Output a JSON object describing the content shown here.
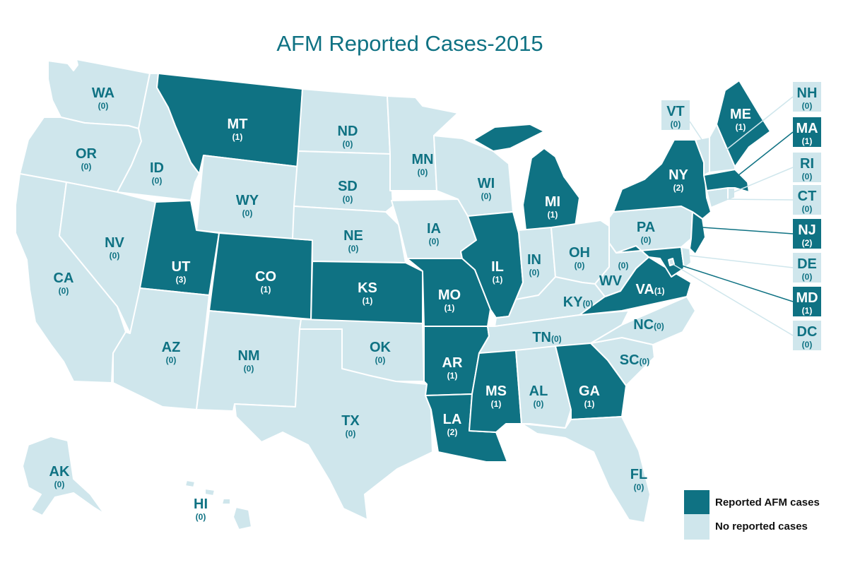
{
  "title": "AFM Reported Cases-2015",
  "colors": {
    "reported": "#0f7283",
    "none": "#cfe6ec",
    "border": "#ffffff",
    "label_on_light": "#0f7283",
    "label_on_dark": "#ffffff"
  },
  "legend": {
    "reported_label": "Reported AFM cases",
    "none_label": "No reported cases"
  },
  "states": {
    "WA": {
      "abbr": "WA",
      "count": "(0)",
      "reported": false
    },
    "OR": {
      "abbr": "OR",
      "count": "(0)",
      "reported": false
    },
    "CA": {
      "abbr": "CA",
      "count": "(0)",
      "reported": false
    },
    "ID": {
      "abbr": "ID",
      "count": "(0)",
      "reported": false
    },
    "NV": {
      "abbr": "NV",
      "count": "(0)",
      "reported": false
    },
    "MT": {
      "abbr": "MT",
      "count": "(1)",
      "reported": true
    },
    "WY": {
      "abbr": "WY",
      "count": "(0)",
      "reported": false
    },
    "UT": {
      "abbr": "UT",
      "count": "(3)",
      "reported": true
    },
    "CO": {
      "abbr": "CO",
      "count": "(1)",
      "reported": true
    },
    "AZ": {
      "abbr": "AZ",
      "count": "(0)",
      "reported": false
    },
    "NM": {
      "abbr": "NM",
      "count": "(0)",
      "reported": false
    },
    "ND": {
      "abbr": "ND",
      "count": "(0)",
      "reported": false
    },
    "SD": {
      "abbr": "SD",
      "count": "(0)",
      "reported": false
    },
    "NE": {
      "abbr": "NE",
      "count": "(0)",
      "reported": false
    },
    "KS": {
      "abbr": "KS",
      "count": "(1)",
      "reported": true
    },
    "OK": {
      "abbr": "OK",
      "count": "(0)",
      "reported": false
    },
    "TX": {
      "abbr": "TX",
      "count": "(0)",
      "reported": false
    },
    "MN": {
      "abbr": "MN",
      "count": "(0)",
      "reported": false
    },
    "IA": {
      "abbr": "IA",
      "count": "(0)",
      "reported": false
    },
    "MO": {
      "abbr": "MO",
      "count": "(1)",
      "reported": true
    },
    "AR": {
      "abbr": "AR",
      "count": "(1)",
      "reported": true
    },
    "LA": {
      "abbr": "LA",
      "count": "(2)",
      "reported": true
    },
    "WI": {
      "abbr": "WI",
      "count": "(0)",
      "reported": false
    },
    "IL": {
      "abbr": "IL",
      "count": "(1)",
      "reported": true
    },
    "MI": {
      "abbr": "MI",
      "count": "(1)",
      "reported": true
    },
    "IN": {
      "abbr": "IN",
      "count": "(0)",
      "reported": false
    },
    "OH": {
      "abbr": "OH",
      "count": "(0)",
      "reported": false
    },
    "KY": {
      "abbr": "KY",
      "count": "(0)",
      "reported": false
    },
    "TN": {
      "abbr": "TN",
      "count": "(0)",
      "reported": false
    },
    "MS": {
      "abbr": "MS",
      "count": "(1)",
      "reported": true
    },
    "AL": {
      "abbr": "AL",
      "count": "(0)",
      "reported": false
    },
    "GA": {
      "abbr": "GA",
      "count": "(1)",
      "reported": true
    },
    "FL": {
      "abbr": "FL",
      "count": "(0)",
      "reported": false
    },
    "SC": {
      "abbr": "SC",
      "count": "(0)",
      "reported": false
    },
    "NC": {
      "abbr": "NC",
      "count": "(0)",
      "reported": false
    },
    "VA": {
      "abbr": "VA",
      "count": "(1)",
      "reported": true
    },
    "WV": {
      "abbr": "WV",
      "count": "(0)",
      "reported": false
    },
    "PA": {
      "abbr": "PA",
      "count": "(0)",
      "reported": false
    },
    "NY": {
      "abbr": "NY",
      "count": "(2)",
      "reported": true
    },
    "ME": {
      "abbr": "ME",
      "count": "(1)",
      "reported": true
    },
    "VT": {
      "abbr": "VT",
      "count": "(0)",
      "reported": false
    },
    "NH": {
      "abbr": "NH",
      "count": "(0)",
      "reported": false
    },
    "MA": {
      "abbr": "MA",
      "count": "(1)",
      "reported": true
    },
    "RI": {
      "abbr": "RI",
      "count": "(0)",
      "reported": false
    },
    "CT": {
      "abbr": "CT",
      "count": "(0)",
      "reported": false
    },
    "NJ": {
      "abbr": "NJ",
      "count": "(2)",
      "reported": true
    },
    "DE": {
      "abbr": "DE",
      "count": "(0)",
      "reported": false
    },
    "MD": {
      "abbr": "MD",
      "count": "(1)",
      "reported": true
    },
    "DC": {
      "abbr": "DC",
      "count": "(0)",
      "reported": false
    },
    "AK": {
      "abbr": "AK",
      "count": "(0)",
      "reported": false
    },
    "HI": {
      "abbr": "HI",
      "count": "(0)",
      "reported": false
    }
  }
}
